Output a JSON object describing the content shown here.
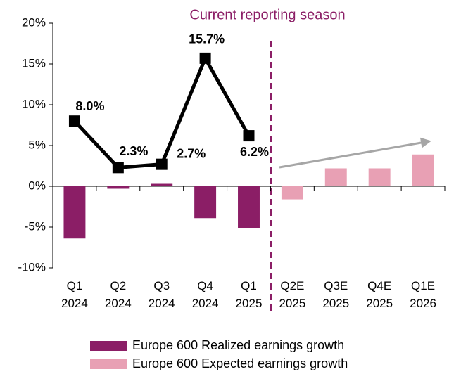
{
  "chart_data": {
    "type": "bar",
    "annotation": "Current reporting season",
    "categories": [
      "Q1 2024",
      "Q2 2024",
      "Q3 2024",
      "Q4 2024",
      "Q1 2025",
      "Q2E 2025",
      "Q3E 2025",
      "Q4E 2025",
      "Q1E 2026"
    ],
    "series": [
      {
        "name": "Europe 600 Realized earnings growth",
        "color": "#8b1e66",
        "values": [
          -6.4,
          -0.3,
          0.3,
          -3.9,
          -5.1,
          null,
          null,
          null,
          null
        ]
      },
      {
        "name": "Europe 600 Expected earnings growth",
        "color": "#e8a0b4",
        "values": [
          null,
          null,
          null,
          null,
          null,
          -1.6,
          2.2,
          2.2,
          3.9
        ]
      }
    ],
    "line": {
      "color": "#000000",
      "values": [
        8.0,
        2.3,
        2.7,
        15.7,
        6.2,
        null,
        null,
        null,
        null
      ],
      "value_labels": [
        "8.0%",
        "2.3%",
        "2.7%",
        "15.7%",
        "6.2%",
        null,
        null,
        null,
        null
      ]
    },
    "ylim": [
      -10,
      20
    ],
    "yticks": [
      {
        "value": -10,
        "label": "-10%"
      },
      {
        "value": -5,
        "label": "-5%"
      },
      {
        "value": 0,
        "label": "0%"
      },
      {
        "value": 5,
        "label": "5%"
      },
      {
        "value": 10,
        "label": "10%"
      },
      {
        "value": 15,
        "label": "15%"
      },
      {
        "value": 20,
        "label": "20%"
      }
    ]
  }
}
